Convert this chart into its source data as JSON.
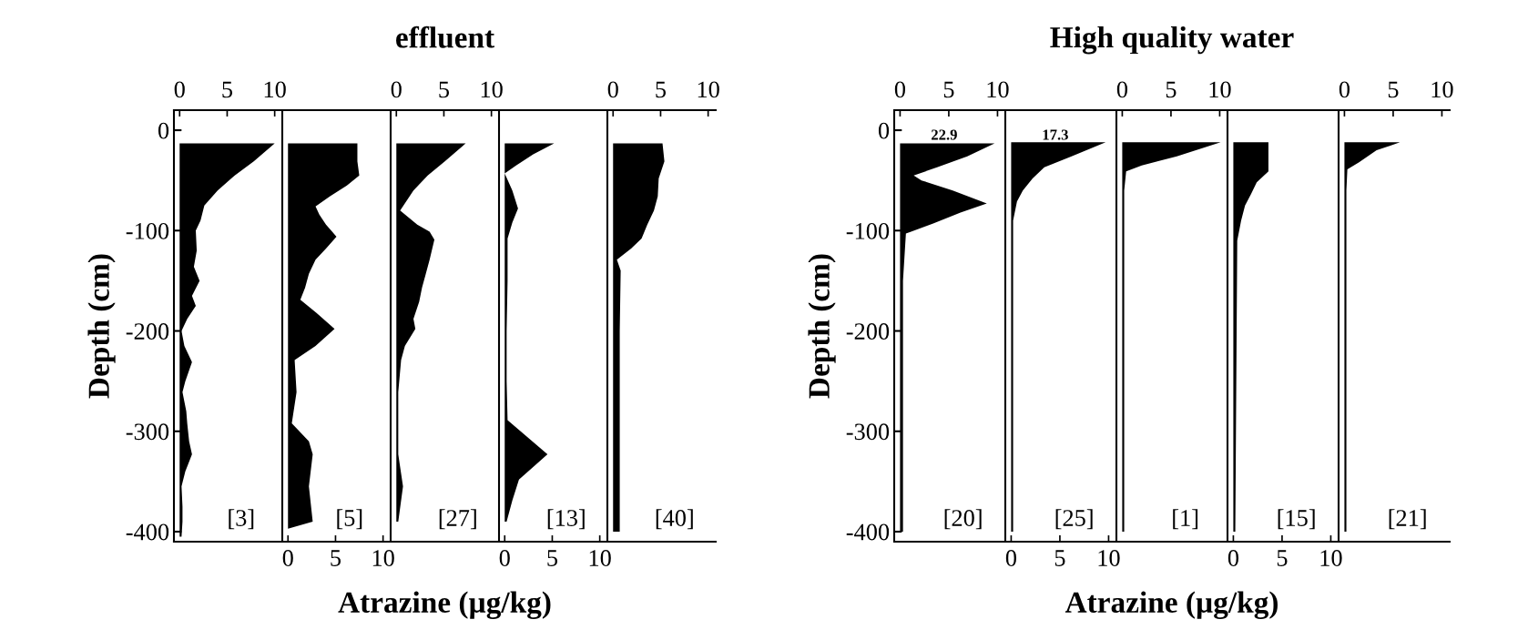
{
  "chart_data": [
    {
      "type": "area",
      "orientation": "horizontal",
      "ylabel": "Depth (cm)",
      "ylim": [
        -410,
        20
      ],
      "yticks": [
        0,
        -100,
        -200,
        -300,
        -400
      ],
      "x2lim": [
        -0.6,
        10.8
      ],
      "x2ticks": [
        0,
        5,
        10
      ],
      "annotations": [
        "[3]"
      ],
      "series": [
        {
          "axis": "x2",
          "color": "#000000",
          "x": [
            -13,
            -31,
            -45,
            -60,
            -75,
            -90,
            -100,
            -120,
            -136,
            -150,
            -165,
            -175,
            -188,
            -200,
            -215,
            -231,
            -250,
            -261,
            -280,
            -292,
            -310,
            -323,
            -340,
            -355,
            -375,
            -390,
            -405
          ],
          "values": [
            10.0,
            7.8,
            5.8,
            4.0,
            2.6,
            2.2,
            1.7,
            1.8,
            1.5,
            2.1,
            1.3,
            1.7,
            0.8,
            0.2,
            0.5,
            1.3,
            0.6,
            0.3,
            0.7,
            0.8,
            1.0,
            1.3,
            0.6,
            0.2,
            0.3,
            0.3,
            0.2
          ]
        }
      ]
    },
    {
      "type": "area",
      "orientation": "horizontal",
      "tick_labels": "x",
      "ylim": [
        -410,
        20
      ],
      "xlim": [
        -0.6,
        10.8
      ],
      "xticks": [
        0,
        5,
        10
      ],
      "annotations": [
        "[5]"
      ],
      "series": [
        {
          "color": "#000000",
          "x": [
            -13,
            -31,
            -45,
            -55,
            -66,
            -76,
            -84,
            -94,
            -106,
            -118,
            -129,
            -143,
            -157,
            -169,
            -182,
            -198,
            -215,
            -229,
            -261,
            -292,
            -310,
            -323,
            -355,
            -390,
            -397
          ],
          "values": [
            7.3,
            7.3,
            7.5,
            6.2,
            4.4,
            2.9,
            3.3,
            4.0,
            5.1,
            4.0,
            2.9,
            2.2,
            1.8,
            1.3,
            3.0,
            4.9,
            2.9,
            0.7,
            0.9,
            0.4,
            2.2,
            2.6,
            2.2,
            2.6,
            0
          ]
        }
      ]
    },
    {
      "type": "area",
      "orientation": "horizontal",
      "tick_labels": "x",
      "title": "effluent",
      "xlabel": "Atrazine (µg/kg)",
      "ylim": [
        -410,
        20
      ],
      "x2lim": [
        -0.6,
        10.8
      ],
      "x2ticks": [
        0,
        5,
        10
      ],
      "annotations": [
        "[27]"
      ],
      "series": [
        {
          "axis": "x2",
          "color": "#000000",
          "x": [
            -13,
            -31,
            -45,
            -60,
            -80,
            -94,
            -101,
            -109,
            -129,
            -143,
            -157,
            -171,
            -188,
            -198,
            -215,
            -229,
            -261,
            -292,
            -323,
            -355,
            -390
          ],
          "values": [
            7.3,
            5.1,
            3.3,
            1.8,
            0.4,
            2.2,
            3.5,
            4.0,
            3.5,
            3.1,
            2.7,
            2.4,
            1.8,
            2.0,
            0.9,
            0.5,
            0.2,
            0.2,
            0.2,
            0.7,
            0.2
          ]
        }
      ]
    },
    {
      "type": "area",
      "orientation": "horizontal",
      "tick_labels": "x",
      "ylim": [
        -410,
        20
      ],
      "xlim": [
        -0.6,
        10.8
      ],
      "xticks": [
        0,
        5,
        10
      ],
      "annotations": [
        "[13]"
      ],
      "series": [
        {
          "color": "#000000",
          "x": [
            -13,
            -24,
            -35,
            -43,
            -60,
            -78,
            -92,
            -108,
            -150,
            -200,
            -250,
            -289,
            -323,
            -348,
            -369,
            -390
          ],
          "values": [
            5.2,
            3.0,
            1.2,
            0,
            0.8,
            1.4,
            0.8,
            0.3,
            0.3,
            0.2,
            0.2,
            0.3,
            4.5,
            1.5,
            0.8,
            0.2
          ]
        }
      ]
    },
    {
      "type": "area",
      "orientation": "horizontal",
      "tick_labels": "x",
      "ylim": [
        -410,
        20
      ],
      "x2lim": [
        -0.6,
        10.8
      ],
      "x2ticks": [
        0,
        5,
        10
      ],
      "annotations": [
        "[40]"
      ],
      "series": [
        {
          "axis": "x2",
          "color": "#000000",
          "x": [
            -13,
            -31,
            -48,
            -66,
            -80,
            -94,
            -108,
            -118,
            -129,
            -140,
            -200,
            -300,
            -400
          ],
          "values": [
            5.2,
            5.4,
            4.8,
            4.7,
            4.3,
            3.6,
            3.0,
            1.9,
            0.4,
            0.8,
            0.7,
            0.7,
            0.7
          ]
        }
      ]
    },
    {
      "type": "area",
      "orientation": "horizontal",
      "ylabel": "Depth (cm)",
      "ylim": [
        -410,
        20
      ],
      "yticks": [
        0,
        -100,
        -200,
        -300,
        -400
      ],
      "x2lim": [
        -0.6,
        10.8
      ],
      "x2ticks": [
        0,
        5,
        10
      ],
      "annotations": [
        "[20]",
        "22.9"
      ],
      "series": [
        {
          "axis": "x2",
          "color": "#000000",
          "x": [
            -13,
            -26,
            -37,
            -45,
            -50,
            -60,
            -73,
            -82,
            -93,
            -103,
            -150,
            -250,
            -350,
            -400
          ],
          "values": [
            9.7,
            6.9,
            3.8,
            1.4,
            2.2,
            5.4,
            8.9,
            6.2,
            3.4,
            0.6,
            0.3,
            0.3,
            0.3,
            0.3
          ]
        }
      ]
    },
    {
      "type": "area",
      "orientation": "horizontal",
      "tick_labels": "x",
      "ylim": [
        -410,
        20
      ],
      "xlim": [
        -0.6,
        10.8
      ],
      "xticks": [
        0,
        5,
        10
      ],
      "annotations": [
        "[25]",
        "17.3"
      ],
      "series": [
        {
          "color": "#000000",
          "x": [
            -12,
            -26,
            -37,
            -48,
            -60,
            -71,
            -90,
            -400
          ],
          "values": [
            9.7,
            6.2,
            3.4,
            2.2,
            1.2,
            0.6,
            0.2,
            0.2
          ]
        }
      ]
    },
    {
      "type": "area",
      "orientation": "horizontal",
      "tick_labels": "x",
      "title": "High quality water",
      "xlabel": "Atrazine (µg/kg)",
      "ylim": [
        -410,
        20
      ],
      "x2lim": [
        -0.6,
        10.8
      ],
      "x2ticks": [
        0,
        5,
        10
      ],
      "annotations": [
        "[1]"
      ],
      "series": [
        {
          "axis": "x2",
          "color": "#000000",
          "x": [
            -12,
            -26,
            -35,
            -41,
            -60,
            -400
          ],
          "values": [
            10.1,
            5.6,
            2.0,
            0.4,
            0.2,
            0.2
          ]
        }
      ]
    },
    {
      "type": "area",
      "orientation": "horizontal",
      "tick_labels": "x",
      "ylim": [
        -410,
        20
      ],
      "xlim": [
        -0.6,
        10.8
      ],
      "xticks": [
        0,
        5,
        10
      ],
      "annotations": [
        "[15]"
      ],
      "series": [
        {
          "color": "#000000",
          "x": [
            -12,
            -41,
            -52,
            -64,
            -75,
            -90,
            -110,
            -400
          ],
          "values": [
            3.6,
            3.6,
            2.4,
            1.8,
            1.2,
            0.8,
            0.4,
            0.2
          ]
        }
      ]
    },
    {
      "type": "area",
      "orientation": "horizontal",
      "tick_labels": "x",
      "ylim": [
        -410,
        20
      ],
      "x2lim": [
        -0.6,
        10.8
      ],
      "x2ticks": [
        0,
        5,
        10
      ],
      "annotations": [
        "[21]"
      ],
      "series": [
        {
          "axis": "x2",
          "color": "#000000",
          "x": [
            -12,
            -20,
            -32,
            -39,
            -60,
            -400
          ],
          "values": [
            5.7,
            3.3,
            1.5,
            0.3,
            0.2,
            0.2
          ]
        }
      ]
    }
  ]
}
